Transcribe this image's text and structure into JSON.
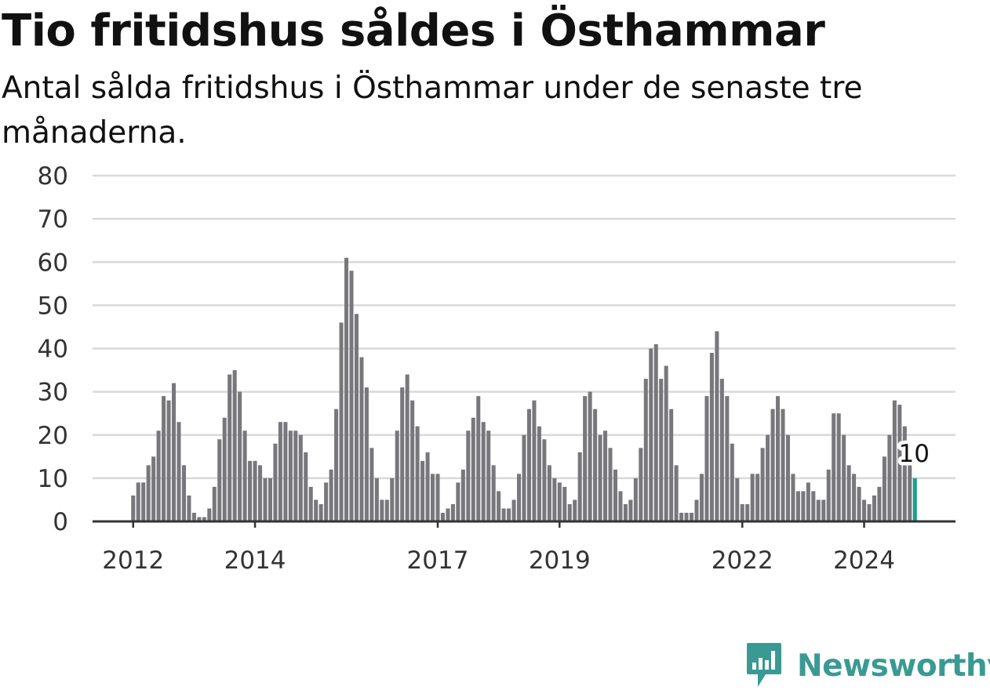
{
  "header": {
    "title": "Tio fritidshus såldes i Östhammar",
    "subtitle": "Antal sålda fritidshus i Östhammar under de senaste tre månaderna."
  },
  "brand": {
    "name": "Newsworthy",
    "icon": "newsworthy-logo-icon",
    "color": "#3a9a93"
  },
  "colors": {
    "bar": "#78777c",
    "highlight": "#1a9e8f",
    "grid": "#d9d9d9",
    "axis": "#333333"
  },
  "chart_data": {
    "type": "bar",
    "title": "Tio fritidshus såldes i Östhammar",
    "subtitle": "Antal sålda fritidshus i Östhammar under de senaste tre månaderna.",
    "xlabel": "",
    "ylabel": "",
    "ylim": [
      0,
      80
    ],
    "yticks": [
      "0",
      "10",
      "20",
      "30",
      "40",
      "50",
      "60",
      "70",
      "80"
    ],
    "xticks": [
      {
        "label": "2012",
        "index": 0
      },
      {
        "label": "2014",
        "index": 24
      },
      {
        "label": "2017",
        "index": 60
      },
      {
        "label": "2019",
        "index": 84
      },
      {
        "label": "2022",
        "index": 120
      },
      {
        "label": "2024",
        "index": 144
      }
    ],
    "grid": true,
    "x_domain": [
      -8,
      162
    ],
    "start_month": "2012-01",
    "values": [
      6,
      9,
      9,
      13,
      15,
      21,
      29,
      28,
      32,
      23,
      13,
      6,
      2,
      1,
      1,
      3,
      8,
      19,
      24,
      34,
      35,
      30,
      21,
      14,
      14,
      13,
      10,
      10,
      18,
      23,
      23,
      21,
      21,
      20,
      16,
      8,
      5,
      4,
      9,
      12,
      26,
      46,
      61,
      58,
      48,
      38,
      31,
      17,
      10,
      5,
      5,
      10,
      21,
      31,
      34,
      28,
      22,
      14,
      16,
      11,
      11,
      2,
      3,
      4,
      9,
      12,
      21,
      24,
      29,
      23,
      21,
      13,
      7,
      3,
      3,
      5,
      11,
      20,
      26,
      28,
      22,
      19,
      13,
      10,
      9,
      8,
      4,
      5,
      16,
      29,
      30,
      26,
      20,
      21,
      17,
      12,
      7,
      4,
      5,
      10,
      17,
      33,
      40,
      41,
      33,
      36,
      26,
      13,
      2,
      2,
      2,
      5,
      11,
      29,
      39,
      44,
      33,
      29,
      18,
      10,
      4,
      4,
      11,
      11,
      17,
      20,
      26,
      29,
      26,
      20,
      11,
      7,
      7,
      9,
      7,
      5,
      5,
      12,
      25,
      25,
      20,
      13,
      11,
      8,
      5,
      4,
      6,
      8,
      15,
      20,
      28,
      27,
      22,
      13,
      10
    ],
    "highlight": {
      "index": 154,
      "label": "10"
    }
  }
}
